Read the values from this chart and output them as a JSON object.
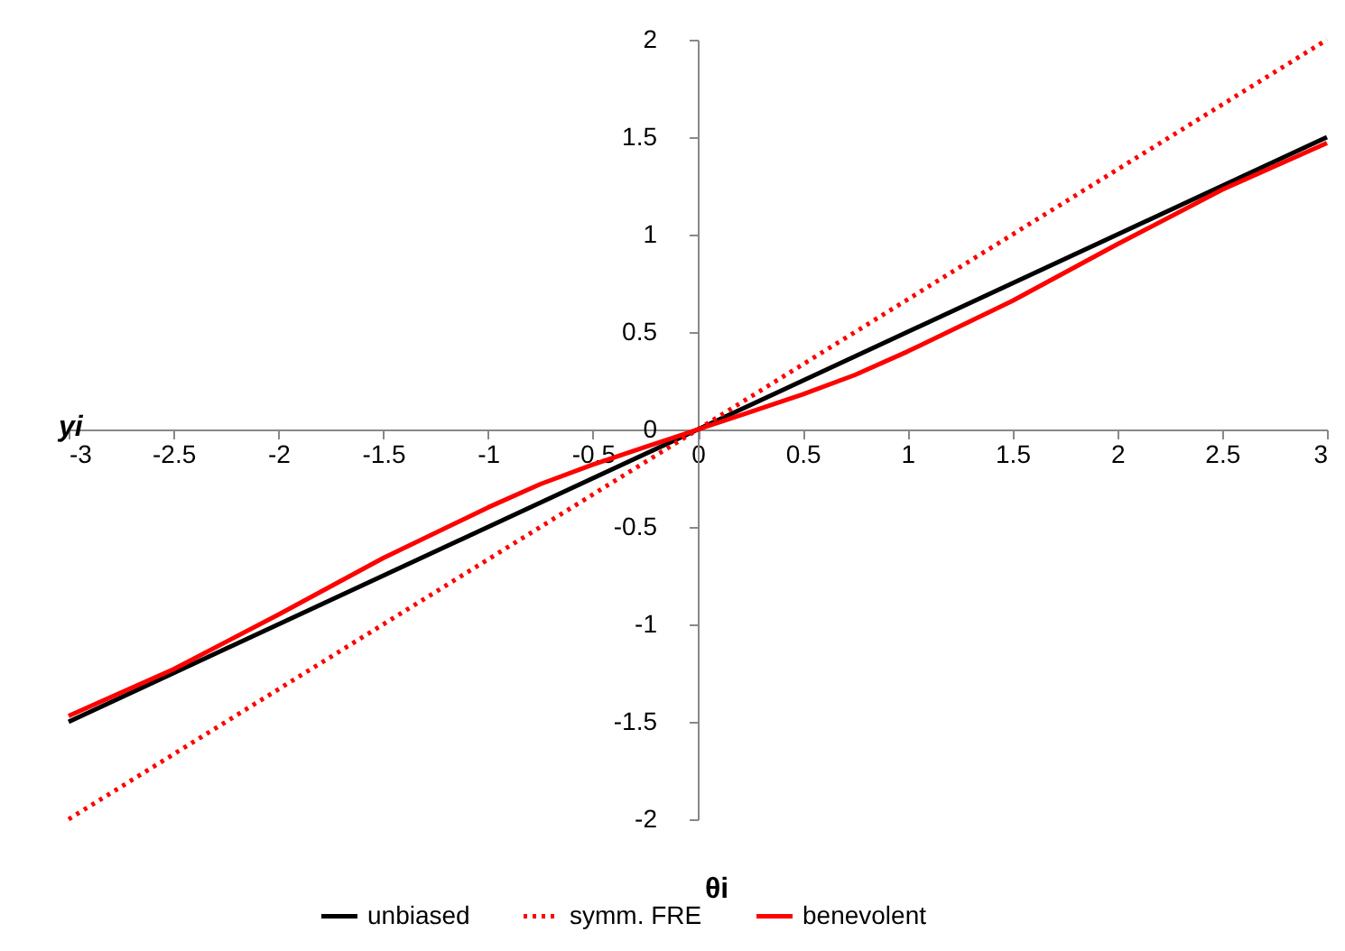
{
  "chart_data": {
    "type": "line",
    "xlabel": "θi",
    "ylabel": "yi",
    "xlim": [
      -3,
      3
    ],
    "ylim": [
      -2,
      2
    ],
    "xticks": [
      -3,
      -2.5,
      -2,
      -1.5,
      -1,
      -0.5,
      0,
      0.5,
      1,
      1.5,
      2,
      2.5,
      3
    ],
    "yticks": [
      -2,
      -1.5,
      -1,
      -0.5,
      0,
      0.5,
      1,
      1.5,
      2
    ],
    "grid": false,
    "legend": "bottom",
    "marker": "none",
    "series": [
      {
        "name": "unbiased",
        "color": "#000000",
        "line_style": "solid",
        "x": [
          -3,
          0,
          3
        ],
        "values": [
          -1.5,
          0,
          1.5
        ]
      },
      {
        "name": "symm. FRE",
        "color": "#ff0000",
        "line_style": "dotted",
        "x": [
          -3,
          3
        ],
        "values": [
          -2,
          2
        ]
      },
      {
        "name": "benevolent",
        "color": "#ff0000",
        "line_style": "solid",
        "x": [
          -3,
          -2.5,
          -2,
          -1.5,
          -1,
          -0.75,
          -0.5,
          -0.25,
          0,
          0.25,
          0.5,
          0.75,
          1,
          1.5,
          2,
          2.5,
          3
        ],
        "values": [
          -1.47,
          -1.23,
          -0.95,
          -0.66,
          -0.4,
          -0.28,
          -0.18,
          -0.09,
          0,
          0.09,
          0.18,
          0.28,
          0.4,
          0.66,
          0.95,
          1.23,
          1.47
        ]
      }
    ]
  }
}
